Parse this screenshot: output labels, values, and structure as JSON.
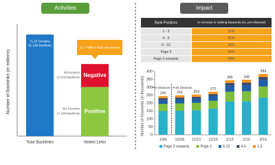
{
  "charts": [
    {
      "chart_data": {
        "type": "bar",
        "title": "Activities",
        "y_label": "Number of Backlinks (in millions)",
        "categories": [
          "Total Backlinks",
          "Vetted Links"
        ],
        "ylim": [
          0,
          60
        ],
        "annotation": "12.7 million links disavowed",
        "series": [
          {
            "color": "#1f78c8",
            "values": [
              56.12,
              null
            ],
            "value_labels": [
              "56.12M Backlinks",
              null
            ],
            "domain_labels": [
              "71.2K Domains",
              null
            ]
          },
          {
            "name": "Positive",
            "color": "#8dc63f",
            "values": [
              null,
              27.16
            ],
            "value_labels": [
              null,
              "27.16M Backlinks"
            ],
            "domain_labels": [
              null,
              "361 Domains"
            ]
          },
          {
            "name": "Negative",
            "color": "#e0102f",
            "values": [
              null,
              12.67
            ],
            "value_labels": [
              null,
              "12.67M Backlinks"
            ],
            "domain_labels": [
              null,
              "88 Domains"
            ]
          }
        ]
      }
    },
    {
      "table": {
        "title": "Impact",
        "columns": [
          "Rank Positions",
          "% Increase in ranking keywords (vs. pre-disavow)"
        ],
        "rows": [
          [
            "1 - 3",
            "31%"
          ],
          [
            "4 - 5",
            "41%"
          ],
          [
            "6 - 10",
            "46%"
          ],
          [
            "Page 2",
            "66%"
          ],
          [
            "Page 3 onwards",
            "64%"
          ]
        ]
      },
      "chart_data": {
        "type": "stacked-bar",
        "y_label": "Number of Keywords (in thousands)",
        "categories": [
          "10/6",
          "10/26",
          "11/21",
          "12/15",
          "1/13",
          "2/16",
          "3/15"
        ],
        "ylim": [
          0,
          400
        ],
        "yticks": [
          0,
          50,
          100,
          150,
          200,
          250,
          300,
          350,
          400
        ],
        "totals": [
          245,
          250,
          254,
          272,
          345,
          348,
          384
        ],
        "annotations": [
          "Pre Disavow",
          "Post Disavow"
        ],
        "legend": "bottom",
        "series": [
          {
            "name": "Page 3 onwards",
            "color": "#29b1c9",
            "values": [
              150,
              152,
              155,
              165,
              210,
              212,
              235
            ]
          },
          {
            "name": "Page 2",
            "color": "#7dbf3b",
            "values": [
              45,
              46,
              47,
              50,
              62,
              63,
              70
            ]
          },
          {
            "name": "6-10",
            "color": "#1f5fa8",
            "values": [
              25,
              26,
              26,
              29,
              38,
              38,
              41
            ]
          },
          {
            "name": "4-5",
            "color": "#3b4a6b",
            "values": [
              12,
              12,
              12,
              13,
              17,
              17,
              19
            ]
          },
          {
            "name": "1-3",
            "color": "#f7941d",
            "values": [
              13,
              14,
              14,
              15,
              18,
              18,
              19
            ]
          }
        ]
      }
    }
  ]
}
